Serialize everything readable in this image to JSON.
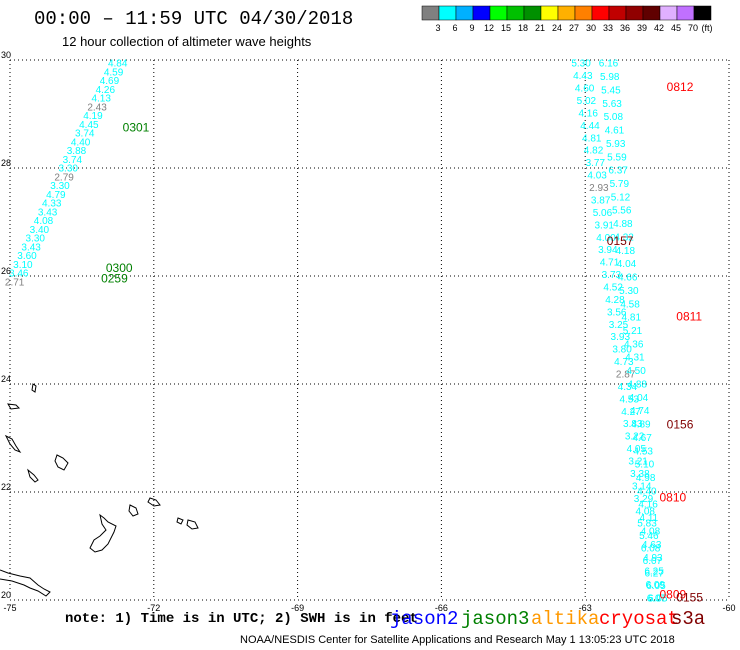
{
  "title": "00:00 – 11:59 UTC 04/30/2018",
  "subtitle": "12 hour collection of altimeter wave heights",
  "footnote": "note: 1) Time is in UTC; 2) SWH is in feet",
  "credit": "NOAA/NESDIS Center for Satellite Applications and Research   May  1 13:05:23 UTC 2018",
  "colors": {
    "height_3_6": "#00ffff",
    "height_lt_3": "#808080",
    "time_jason3": "#008000",
    "time_cryosat": "#ff0000",
    "time_s3a": "#800000",
    "grid": "#000000",
    "coast": "#000000"
  },
  "legend": {
    "unit": "(ft)",
    "scale": [
      {
        "label": "3",
        "color": "#808080"
      },
      {
        "label": "6",
        "color": "#00ffff"
      },
      {
        "label": "9",
        "color": "#00b0ff"
      },
      {
        "label": "12",
        "color": "#0000ff"
      },
      {
        "label": "15",
        "color": "#00ff00"
      },
      {
        "label": "18",
        "color": "#00c000"
      },
      {
        "label": "21",
        "color": "#009000"
      },
      {
        "label": "24",
        "color": "#ffff00"
      },
      {
        "label": "27",
        "color": "#ffb000"
      },
      {
        "label": "30",
        "color": "#ff8000"
      },
      {
        "label": "33",
        "color": "#ff0000"
      },
      {
        "label": "36",
        "color": "#c00000"
      },
      {
        "label": "39",
        "color": "#900000"
      },
      {
        "label": "42",
        "color": "#600000"
      },
      {
        "label": "45",
        "color": "#e0b0ff"
      },
      {
        "label": "70",
        "color": "#c070ff"
      },
      {
        "label": "",
        "color": "#000000"
      }
    ]
  },
  "satellites": [
    {
      "name": "jason2",
      "color": "#0000ff"
    },
    {
      "name": "jason3",
      "color": "#008000"
    },
    {
      "name": "altika",
      "color": "#ff9900"
    },
    {
      "name": "cryosat",
      "color": "#ff0000"
    },
    {
      "name": "s3a",
      "color": "#800000"
    }
  ],
  "map_data": {
    "lon_range": [
      -75,
      -60
    ],
    "lat_range": [
      20,
      30
    ],
    "lon_ticks": [
      "-75",
      "-72",
      "-69",
      "-66",
      "-63",
      "-60"
    ],
    "lat_ticks": [
      "30",
      "28",
      "26",
      "24",
      "22",
      "20"
    ],
    "grid": "dotted",
    "track_west": {
      "lon_start": -72.55,
      "lat_start": 29.95,
      "lon_end": -74.7,
      "lat_end": 25.9,
      "heights": [
        "4.84",
        "4.59",
        "4.69",
        "4.26",
        "4.13",
        "2.43",
        "4.19",
        "4.45",
        "3.74",
        "4.40",
        "3.88",
        "3.74",
        "3.30",
        "2.79",
        "3.30",
        "4.79",
        "4.33",
        "3.43",
        "4.08",
        "3.40",
        "3.30",
        "3.43",
        "3.60",
        "3.10",
        "3.46",
        "2.71"
      ],
      "times": [
        {
          "label": "0301",
          "lon": -72.65,
          "lat": 28.75,
          "sat": "jason3"
        },
        {
          "label": "0300",
          "lon": -73.0,
          "lat": 26.15,
          "sat": "jason3"
        },
        {
          "label": "0259",
          "lon": -73.1,
          "lat": 25.95,
          "sat": "jason3"
        }
      ]
    },
    "track_mid": {
      "lon_start": -62.8,
      "lat_start": 29.95,
      "lon_end": -61.2,
      "lat_end": 20.05,
      "heights": [
        "5.30",
        "4.43",
        "4.60",
        "5.02",
        "4.16",
        "4.44",
        "4.81",
        "4.82",
        "3.77",
        "4.03",
        "2.93",
        "3.87",
        "5.06",
        "3.91",
        "4.00",
        "3.94",
        "4.71",
        "3.73",
        "4.52",
        "4.28",
        "3.56",
        "3.25",
        "3.93",
        "3.80",
        "4.73",
        "2.87",
        "4.34",
        "4.53",
        "4.27",
        "3.83",
        "3.22",
        "4.05",
        "3.21",
        "3.38",
        "3.14",
        "3.29",
        "4.08",
        "5.83",
        "5.46",
        "6.08",
        "6.07",
        "6.27",
        "6.05",
        "6.05"
      ]
    },
    "track_east": {
      "lon_start": -62.8,
      "lat_start": 29.95,
      "lon_end": -61.8,
      "lat_end": 20.05,
      "heights": [
        "6.16",
        "5.98",
        "5.45",
        "5.63",
        "5.08",
        "4.61",
        "5.93",
        "5.59",
        "6.37",
        "5.79",
        "5.12",
        "5.56",
        "4.88",
        "4.32",
        "4.18",
        "4.04",
        "4.66",
        "5.30",
        "4.58",
        "4.81",
        "5.21",
        "4.36",
        "4.31",
        "4.50",
        "4.88",
        "4.04",
        "4.74",
        "4.89",
        "4.67",
        "4.53",
        "5.10",
        "4.98",
        "4.40",
        "4.16",
        "4.11",
        "4.08",
        "4.63",
        "4.93",
        "6.25",
        "6.09",
        "6.07"
      ],
      "times": [
        {
          "label": "0812",
          "lon": -61.3,
          "lat": 29.5,
          "sat": "cryosat"
        },
        {
          "label": "0157",
          "lon": -62.55,
          "lat": 26.65,
          "sat": "s3a"
        },
        {
          "label": "0811",
          "lon": -61.1,
          "lat": 25.25,
          "sat": "cryosat"
        },
        {
          "label": "0156",
          "lon": -61.3,
          "lat": 23.25,
          "sat": "s3a"
        },
        {
          "label": "0810",
          "lon": -61.45,
          "lat": 21.9,
          "sat": "cryosat"
        },
        {
          "label": "0809",
          "lon": -61.45,
          "lat": 20.1,
          "sat": "cryosat"
        },
        {
          "label": "0155",
          "lon": -61.1,
          "lat": 20.05,
          "sat": "s3a"
        }
      ]
    }
  }
}
